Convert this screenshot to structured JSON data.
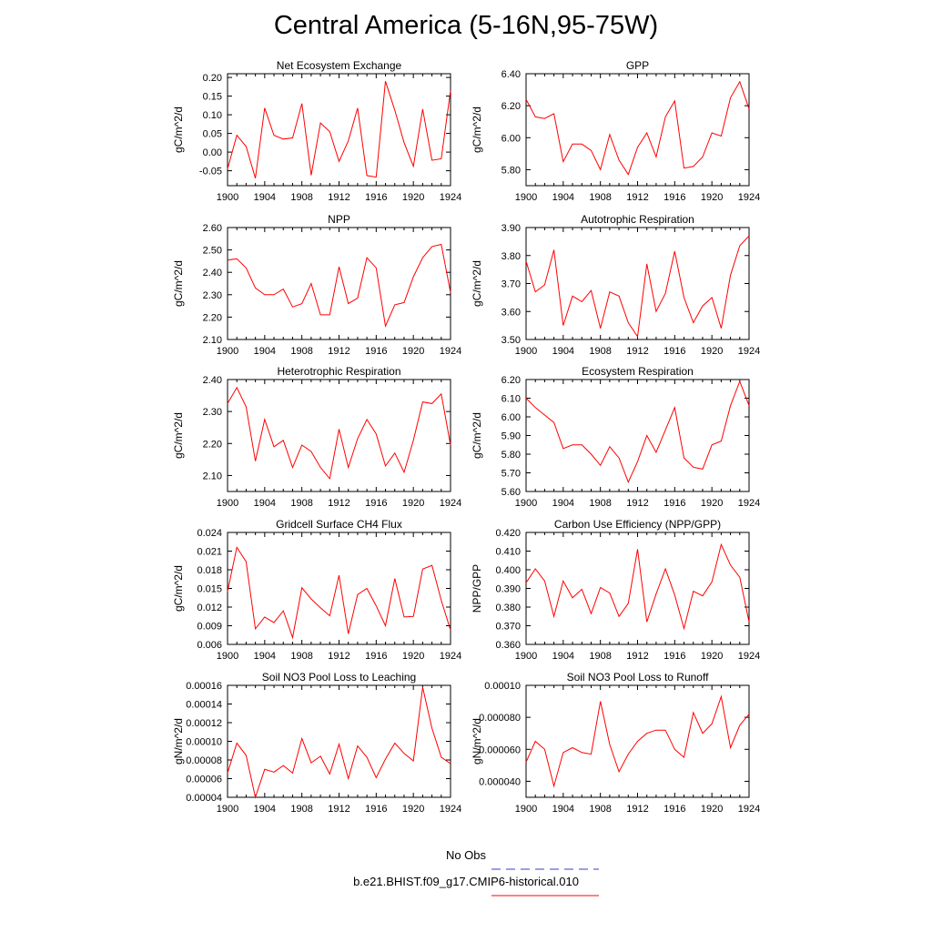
{
  "title": "Central America (5-16N,95-75W)",
  "colors": {
    "series": "#ff0000",
    "obs": "#3b3bd0"
  },
  "legend": {
    "obs_label": "No Obs",
    "model_label": "b.e21.BHIST.f09_g17.CMIP6-historical.010"
  },
  "chart_data": [
    {
      "type": "line",
      "title": "Net Ecosystem Exchange",
      "ylabel": "gC/m^2/d",
      "xlim": [
        1900,
        1924
      ],
      "xticks": [
        "1900",
        "1904",
        "1908",
        "1912",
        "1916",
        "1920",
        "1924"
      ],
      "ylim": [
        -0.09,
        0.21
      ],
      "yticks": [
        "-0.05",
        "0.00",
        "0.05",
        "0.10",
        "0.15",
        "0.20"
      ],
      "x": [
        1900,
        1901,
        1902,
        1903,
        1904,
        1905,
        1906,
        1907,
        1908,
        1909,
        1910,
        1911,
        1912,
        1913,
        1914,
        1915,
        1916,
        1917,
        1918,
        1919,
        1920,
        1921,
        1922,
        1923,
        1924
      ],
      "values": [
        -0.045,
        0.045,
        0.015,
        -0.07,
        0.118,
        0.045,
        0.035,
        0.038,
        0.13,
        -0.062,
        0.078,
        0.055,
        -0.025,
        0.03,
        0.118,
        -0.063,
        -0.067,
        0.19,
        0.112,
        0.025,
        -0.038,
        0.115,
        -0.022,
        -0.018,
        0.165
      ]
    },
    {
      "type": "line",
      "title": "GPP",
      "ylabel": "gC/m^2/d",
      "xlim": [
        1900,
        1924
      ],
      "xticks": [
        "1900",
        "1904",
        "1908",
        "1912",
        "1916",
        "1920",
        "1924"
      ],
      "ylim": [
        5.7,
        6.4
      ],
      "yticks": [
        "5.80",
        "6.00",
        "6.20",
        "6.40"
      ],
      "x": [
        1900,
        1901,
        1902,
        1903,
        1904,
        1905,
        1906,
        1907,
        1908,
        1909,
        1910,
        1911,
        1912,
        1913,
        1914,
        1915,
        1916,
        1917,
        1918,
        1919,
        1920,
        1921,
        1922,
        1923,
        1924
      ],
      "values": [
        6.24,
        6.13,
        6.12,
        6.15,
        5.85,
        5.96,
        5.96,
        5.92,
        5.8,
        6.02,
        5.86,
        5.77,
        5.94,
        6.03,
        5.88,
        6.13,
        6.23,
        5.81,
        5.82,
        5.88,
        6.03,
        6.01,
        6.25,
        6.35,
        6.18
      ]
    },
    {
      "type": "line",
      "title": "NPP",
      "ylabel": "gC/m^2/d",
      "xlim": [
        1900,
        1924
      ],
      "xticks": [
        "1900",
        "1904",
        "1908",
        "1912",
        "1916",
        "1920",
        "1924"
      ],
      "ylim": [
        2.1,
        2.6
      ],
      "yticks": [
        "2.10",
        "2.20",
        "2.30",
        "2.40",
        "2.50",
        "2.60"
      ],
      "x": [
        1900,
        1901,
        1902,
        1903,
        1904,
        1905,
        1906,
        1907,
        1908,
        1909,
        1910,
        1911,
        1912,
        1913,
        1914,
        1915,
        1916,
        1917,
        1918,
        1919,
        1920,
        1921,
        1922,
        1923,
        1924
      ],
      "values": [
        2.455,
        2.46,
        2.42,
        2.33,
        2.3,
        2.3,
        2.325,
        2.245,
        2.26,
        2.35,
        2.21,
        2.21,
        2.425,
        2.26,
        2.285,
        2.465,
        2.42,
        2.16,
        2.255,
        2.265,
        2.38,
        2.465,
        2.515,
        2.525,
        2.31
      ]
    },
    {
      "type": "line",
      "title": "Autotrophic Respiration",
      "ylabel": "gC/m^2/d",
      "xlim": [
        1900,
        1924
      ],
      "xticks": [
        "1900",
        "1904",
        "1908",
        "1912",
        "1916",
        "1920",
        "1924"
      ],
      "ylim": [
        3.5,
        3.9
      ],
      "yticks": [
        "3.50",
        "3.60",
        "3.70",
        "3.80",
        "3.90"
      ],
      "x": [
        1900,
        1901,
        1902,
        1903,
        1904,
        1905,
        1906,
        1907,
        1908,
        1909,
        1910,
        1911,
        1912,
        1913,
        1914,
        1915,
        1916,
        1917,
        1918,
        1919,
        1920,
        1921,
        1922,
        1923,
        1924
      ],
      "values": [
        3.78,
        3.67,
        3.695,
        3.82,
        3.55,
        3.655,
        3.635,
        3.675,
        3.54,
        3.67,
        3.655,
        3.56,
        3.51,
        3.77,
        3.6,
        3.665,
        3.815,
        3.65,
        3.56,
        3.62,
        3.65,
        3.54,
        3.73,
        3.835,
        3.87
      ]
    },
    {
      "type": "line",
      "title": "Heterotrophic Respiration",
      "ylabel": "gC/m^2/d",
      "xlim": [
        1900,
        1924
      ],
      "xticks": [
        "1900",
        "1904",
        "1908",
        "1912",
        "1916",
        "1920",
        "1924"
      ],
      "ylim": [
        2.05,
        2.4
      ],
      "yticks": [
        "2.10",
        "2.20",
        "2.30",
        "2.40"
      ],
      "x": [
        1900,
        1901,
        1902,
        1903,
        1904,
        1905,
        1906,
        1907,
        1908,
        1909,
        1910,
        1911,
        1912,
        1913,
        1914,
        1915,
        1916,
        1917,
        1918,
        1919,
        1920,
        1921,
        1922,
        1923,
        1924
      ],
      "values": [
        2.325,
        2.375,
        2.315,
        2.145,
        2.275,
        2.19,
        2.21,
        2.125,
        2.195,
        2.175,
        2.125,
        2.09,
        2.245,
        2.125,
        2.215,
        2.275,
        2.23,
        2.13,
        2.17,
        2.11,
        2.21,
        2.33,
        2.325,
        2.355,
        2.195
      ]
    },
    {
      "type": "line",
      "title": "Ecosystem Respiration",
      "ylabel": "gC/m^2/d",
      "xlim": [
        1900,
        1924
      ],
      "xticks": [
        "1900",
        "1904",
        "1908",
        "1912",
        "1916",
        "1920",
        "1924"
      ],
      "ylim": [
        5.6,
        6.2
      ],
      "yticks": [
        "5.60",
        "5.70",
        "5.80",
        "5.90",
        "6.00",
        "6.10",
        "6.20"
      ],
      "x": [
        1900,
        1901,
        1902,
        1903,
        1904,
        1905,
        1906,
        1907,
        1908,
        1909,
        1910,
        1911,
        1912,
        1913,
        1914,
        1915,
        1916,
        1917,
        1918,
        1919,
        1920,
        1921,
        1922,
        1923,
        1924
      ],
      "values": [
        6.1,
        6.05,
        6.01,
        5.97,
        5.83,
        5.85,
        5.85,
        5.8,
        5.74,
        5.84,
        5.78,
        5.65,
        5.76,
        5.9,
        5.81,
        5.93,
        6.05,
        5.78,
        5.73,
        5.72,
        5.85,
        5.87,
        6.06,
        6.19,
        6.06
      ]
    },
    {
      "type": "line",
      "title": "Gridcell Surface CH4 Flux",
      "ylabel": "gC/m^2/d",
      "xlim": [
        1900,
        1924
      ],
      "xticks": [
        "1900",
        "1904",
        "1908",
        "1912",
        "1916",
        "1920",
        "1924"
      ],
      "ylim": [
        0.006,
        0.024
      ],
      "yticks": [
        "0.006",
        "0.009",
        "0.012",
        "0.015",
        "0.018",
        "0.021",
        "0.024"
      ],
      "x": [
        1900,
        1901,
        1902,
        1903,
        1904,
        1905,
        1906,
        1907,
        1908,
        1909,
        1910,
        1911,
        1912,
        1913,
        1914,
        1915,
        1916,
        1917,
        1918,
        1919,
        1920,
        1921,
        1922,
        1923,
        1924
      ],
      "values": [
        0.0145,
        0.0216,
        0.0193,
        0.0085,
        0.0104,
        0.0095,
        0.0114,
        0.0071,
        0.0151,
        0.0133,
        0.0119,
        0.0106,
        0.0171,
        0.0077,
        0.014,
        0.015,
        0.0122,
        0.009,
        0.0166,
        0.0104,
        0.0105,
        0.0181,
        0.0187,
        0.0131,
        0.0083
      ]
    },
    {
      "type": "line",
      "title": "Carbon Use Efficiency (NPP/GPP)",
      "ylabel": "NPP/GPP",
      "xlim": [
        1900,
        1924
      ],
      "xticks": [
        "1900",
        "1904",
        "1908",
        "1912",
        "1916",
        "1920",
        "1924"
      ],
      "ylim": [
        0.36,
        0.42
      ],
      "yticks": [
        "0.360",
        "0.370",
        "0.380",
        "0.390",
        "0.400",
        "0.410",
        "0.420"
      ],
      "x": [
        1900,
        1901,
        1902,
        1903,
        1904,
        1905,
        1906,
        1907,
        1908,
        1909,
        1910,
        1911,
        1912,
        1913,
        1914,
        1915,
        1916,
        1917,
        1918,
        1919,
        1920,
        1921,
        1922,
        1923,
        1924
      ],
      "values": [
        0.393,
        0.4005,
        0.394,
        0.375,
        0.394,
        0.385,
        0.3895,
        0.3765,
        0.3905,
        0.3875,
        0.375,
        0.382,
        0.411,
        0.372,
        0.387,
        0.4005,
        0.3865,
        0.3685,
        0.3885,
        0.386,
        0.3935,
        0.4135,
        0.4025,
        0.396,
        0.372
      ]
    },
    {
      "type": "line",
      "title": "Soil NO3 Pool Loss to Leaching",
      "ylabel": "gN/m^2/d",
      "xlim": [
        1900,
        1924
      ],
      "xticks": [
        "1900",
        "1904",
        "1908",
        "1912",
        "1916",
        "1920",
        "1924"
      ],
      "ylim": [
        4e-05,
        0.00016
      ],
      "yticks": [
        "0.00004",
        "0.00006",
        "0.00008",
        "0.00010",
        "0.00012",
        "0.00014",
        "0.00016"
      ],
      "x": [
        1900,
        1901,
        1902,
        1903,
        1904,
        1905,
        1906,
        1907,
        1908,
        1909,
        1910,
        1911,
        1912,
        1913,
        1914,
        1915,
        1916,
        1917,
        1918,
        1919,
        1920,
        1921,
        1922,
        1923,
        1924
      ],
      "values": [
        6.6e-05,
        9.8e-05,
        8.5e-05,
        4e-05,
        7e-05,
        6.7e-05,
        7.4e-05,
        6.6e-05,
        0.000103,
        7.7e-05,
        8.4e-05,
        6.5e-05,
        9.7e-05,
        6e-05,
        9.5e-05,
        8.3e-05,
        6.1e-05,
        8.1e-05,
        9.8e-05,
        8.7e-05,
        7.9e-05,
        0.000158,
        0.000114,
        8.3e-05,
        7.6e-05
      ]
    },
    {
      "type": "line",
      "title": "Soil NO3 Pool Loss to Runoff",
      "ylabel": "gN/m^2/d",
      "xlim": [
        1900,
        1924
      ],
      "xticks": [
        "1900",
        "1904",
        "1908",
        "1912",
        "1916",
        "1920",
        "1924"
      ],
      "ylim": [
        3e-05,
        0.0001
      ],
      "yticks": [
        "0.000040",
        "0.000060",
        "0.000080",
        "0.00010"
      ],
      "x": [
        1900,
        1901,
        1902,
        1903,
        1904,
        1905,
        1906,
        1907,
        1908,
        1909,
        1910,
        1911,
        1912,
        1913,
        1914,
        1915,
        1916,
        1917,
        1918,
        1919,
        1920,
        1921,
        1922,
        1923,
        1924
      ],
      "values": [
        5.2e-05,
        6.5e-05,
        6e-05,
        3.7e-05,
        5.8e-05,
        6.1e-05,
        5.8e-05,
        5.7e-05,
        9e-05,
        6.3e-05,
        4.6e-05,
        5.7e-05,
        6.5e-05,
        7e-05,
        7.2e-05,
        7.2e-05,
        6e-05,
        5.5e-05,
        8.3e-05,
        7e-05,
        7.6e-05,
        9.3e-05,
        6.1e-05,
        7.5e-05,
        8.2e-05
      ]
    }
  ]
}
